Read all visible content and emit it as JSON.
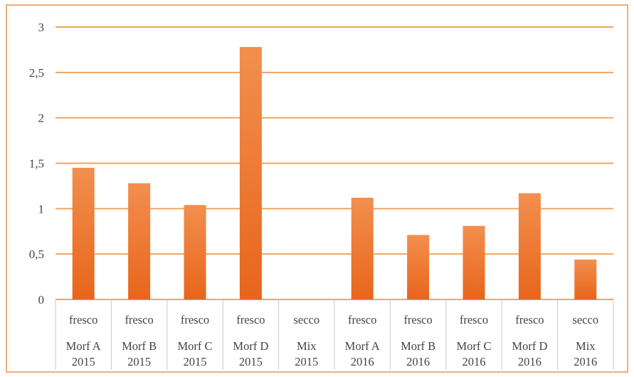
{
  "chart_data": {
    "type": "bar",
    "title": "",
    "xlabel": "",
    "ylabel": "",
    "ylim": [
      0,
      3
    ],
    "yticks": [
      "0",
      "0,5",
      "1",
      "1,5",
      "2",
      "2,5",
      "3"
    ],
    "ytick_values": [
      0,
      0.5,
      1,
      1.5,
      2,
      2.5,
      3
    ],
    "grid": true,
    "legend": "none",
    "categories": [
      [
        "fresco",
        "Morf A",
        "2015"
      ],
      [
        "fresco",
        "Morf B",
        "2015"
      ],
      [
        "fresco",
        "Morf C",
        "2015"
      ],
      [
        "fresco",
        "Morf D",
        "2015"
      ],
      [
        "secco",
        "Mix",
        "2015"
      ],
      [
        "fresco",
        "Morf A",
        "2016"
      ],
      [
        "fresco",
        "Morf B",
        "2016"
      ],
      [
        "fresco",
        "Morf C",
        "2016"
      ],
      [
        "fresco",
        "Morf D",
        "2016"
      ],
      [
        "secco",
        "Mix",
        "2016"
      ]
    ],
    "values": [
      1.45,
      1.28,
      1.04,
      2.78,
      0,
      1.12,
      0.71,
      0.81,
      1.17,
      0.44
    ],
    "colors": {
      "bar_top": "#f28f4e",
      "bar_bottom": "#e8651b",
      "gridline": "#f0a460",
      "frame": "#f0ad7a",
      "category_divider": "#c8c8c8"
    }
  }
}
